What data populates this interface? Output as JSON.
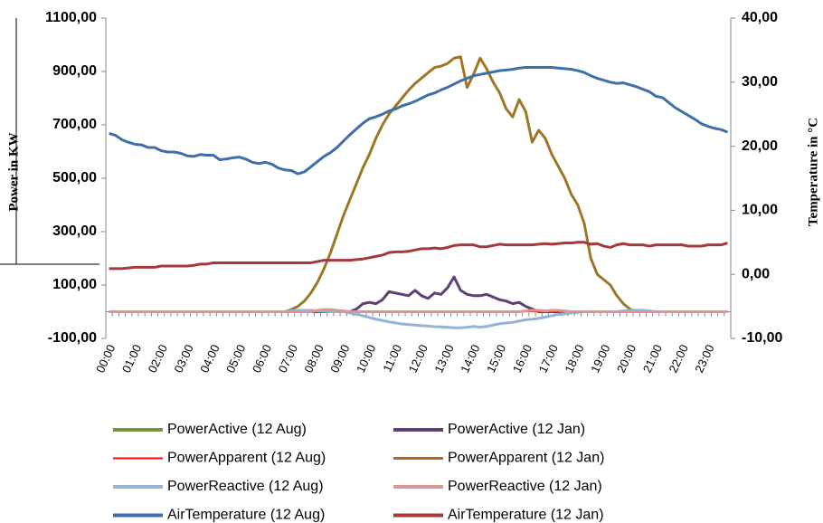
{
  "chart_data": {
    "type": "line",
    "y_label": "Power in KW",
    "y2_label": "Temperature in °C",
    "categories": [
      "00:00",
      null,
      null,
      null,
      "01:00",
      null,
      null,
      null,
      "02:00",
      null,
      null,
      null,
      "03:00",
      null,
      null,
      null,
      "04:00",
      null,
      null,
      null,
      "05:00",
      null,
      null,
      null,
      "06:00",
      null,
      null,
      null,
      "07:00",
      null,
      null,
      null,
      "08:00",
      null,
      null,
      null,
      "09:00",
      null,
      null,
      null,
      "10:00",
      null,
      null,
      null,
      "11:00",
      null,
      null,
      null,
      "12:00",
      null,
      null,
      null,
      "13:00",
      null,
      null,
      null,
      "14:00",
      null,
      null,
      null,
      "15:00",
      null,
      null,
      null,
      "16:00",
      null,
      null,
      null,
      "17:00",
      null,
      null,
      null,
      "18:00",
      null,
      null,
      null,
      "19:00",
      null,
      null,
      null,
      "20:00",
      null,
      null,
      null,
      "21:00",
      null,
      null,
      null,
      "22:00",
      null,
      null,
      null,
      "23:00",
      null,
      null,
      null
    ],
    "ylim": [
      -100,
      1100
    ],
    "yticks": [
      {
        "value": -100,
        "label": "-100,00"
      },
      {
        "value": 100,
        "label": "100,00"
      },
      {
        "value": 300,
        "label": "300,00"
      },
      {
        "value": 500,
        "label": "500,00"
      },
      {
        "value": 700,
        "label": "700,00"
      },
      {
        "value": 900,
        "label": "900,00"
      },
      {
        "value": 1100,
        "label": "1100,00"
      }
    ],
    "y2lim": [
      -10,
      40
    ],
    "y2ticks": [
      {
        "value": -10,
        "label": "-10,00"
      },
      {
        "value": 0,
        "label": "0,00"
      },
      {
        "value": 10,
        "label": "10,00"
      },
      {
        "value": 20,
        "label": "20,00"
      },
      {
        "value": 30,
        "label": "30,00"
      },
      {
        "value": 40,
        "label": "40,00"
      }
    ],
    "grid": false,
    "legend": "bottom",
    "series": [
      {
        "name": "PowerActive (12 Aug)",
        "color": "#77933c",
        "width": 3,
        "values": [
          0,
          0,
          0,
          0,
          0,
          0,
          0,
          0,
          0,
          0,
          0,
          0,
          0,
          0,
          0,
          0,
          0,
          0,
          0,
          0,
          0,
          0,
          0,
          0,
          0,
          0,
          0,
          0,
          8,
          20,
          40,
          70,
          110,
          160,
          220,
          290,
          360,
          420,
          480,
          540,
          590,
          650,
          700,
          740,
          770,
          800,
          830,
          855,
          875,
          895,
          915,
          920,
          930,
          950,
          955,
          840,
          890,
          950,
          910,
          860,
          820,
          760,
          730,
          795,
          750,
          635,
          680,
          650,
          590,
          545,
          500,
          440,
          400,
          330,
          200,
          140,
          120,
          100,
          60,
          30,
          10,
          0,
          0,
          0,
          0,
          0,
          0,
          0,
          0,
          0,
          0,
          0,
          0,
          0,
          0,
          0
        ]
      },
      {
        "name": "PowerActive (12 Jan)",
        "color": "#5f3f75",
        "width": 3,
        "values": [
          0,
          0,
          0,
          0,
          0,
          0,
          0,
          0,
          0,
          0,
          0,
          0,
          0,
          0,
          0,
          0,
          0,
          0,
          0,
          0,
          0,
          0,
          0,
          0,
          0,
          0,
          0,
          0,
          0,
          0,
          0,
          0,
          0,
          0,
          0,
          0,
          0,
          0,
          10,
          30,
          35,
          30,
          45,
          75,
          70,
          65,
          60,
          80,
          60,
          50,
          70,
          65,
          90,
          130,
          80,
          65,
          60,
          60,
          65,
          55,
          45,
          40,
          30,
          35,
          20,
          10,
          0,
          0,
          0,
          0,
          0,
          0,
          0,
          0,
          0,
          0,
          0,
          0,
          0,
          0,
          0,
          0,
          0,
          0,
          0,
          0,
          0,
          0,
          0,
          0,
          0,
          0,
          0,
          0,
          0,
          0
        ]
      },
      {
        "name": "PowerApparent (12 Aug)",
        "color": "#ff0000",
        "width": 1,
        "values": [
          0,
          0,
          0,
          0,
          0,
          0,
          0,
          0,
          0,
          0,
          0,
          0,
          0,
          0,
          0,
          0,
          0,
          0,
          0,
          0,
          0,
          0,
          0,
          0,
          0,
          0,
          0,
          0,
          0,
          0,
          0,
          0,
          0,
          0,
          0,
          0,
          0,
          0,
          0,
          0,
          0,
          0,
          0,
          0,
          0,
          0,
          0,
          0,
          0,
          0,
          0,
          0,
          0,
          0,
          0,
          0,
          0,
          0,
          0,
          0,
          0,
          0,
          0,
          0,
          0,
          0,
          0,
          0,
          0,
          0,
          0,
          0,
          0,
          0,
          0,
          0,
          0,
          0,
          0,
          0,
          0,
          0,
          0,
          0,
          0,
          0,
          0,
          0,
          0,
          0,
          0,
          0,
          0,
          0,
          0,
          0
        ]
      },
      {
        "name": "PowerApparent (12 Jan)",
        "color": "#b26b1e",
        "width": 2,
        "values": [
          0,
          0,
          0,
          0,
          0,
          0,
          0,
          0,
          0,
          0,
          0,
          0,
          0,
          0,
          0,
          0,
          0,
          0,
          0,
          0,
          0,
          0,
          0,
          0,
          0,
          0,
          0,
          0,
          8,
          20,
          40,
          70,
          110,
          160,
          220,
          290,
          360,
          420,
          480,
          540,
          590,
          650,
          700,
          740,
          770,
          800,
          830,
          855,
          875,
          895,
          915,
          920,
          930,
          950,
          955,
          840,
          890,
          950,
          910,
          860,
          820,
          760,
          730,
          795,
          750,
          635,
          680,
          650,
          590,
          545,
          500,
          440,
          400,
          330,
          200,
          140,
          120,
          100,
          60,
          30,
          10,
          0,
          0,
          0,
          0,
          0,
          0,
          0,
          0,
          0,
          0,
          0,
          0,
          0,
          0,
          0
        ]
      },
      {
        "name": "PowerReactive (12 Aug)",
        "color": "#95b3d7",
        "width": 3,
        "values": [
          0,
          0,
          0,
          0,
          0,
          0,
          0,
          0,
          0,
          0,
          0,
          0,
          0,
          0,
          0,
          0,
          0,
          0,
          0,
          0,
          0,
          0,
          0,
          0,
          0,
          0,
          0,
          0,
          3,
          5,
          5,
          5,
          3,
          2,
          0,
          0,
          0,
          -5,
          -10,
          -15,
          -22,
          -28,
          -33,
          -38,
          -42,
          -46,
          -48,
          -50,
          -52,
          -54,
          -56,
          -57,
          -58,
          -60,
          -60,
          -58,
          -55,
          -58,
          -55,
          -50,
          -45,
          -42,
          -40,
          -35,
          -30,
          -28,
          -25,
          -20,
          -15,
          -10,
          -8,
          -5,
          -3,
          0,
          0,
          0,
          0,
          0,
          0,
          3,
          5,
          5,
          5,
          3,
          0,
          0,
          0,
          0,
          0,
          0,
          0,
          0,
          0,
          0,
          0,
          0
        ]
      },
      {
        "name": "PowerReactive (12 Jan)",
        "color": "#d99694",
        "width": 3,
        "values": [
          0,
          0,
          0,
          0,
          0,
          0,
          0,
          0,
          0,
          0,
          0,
          0,
          0,
          0,
          0,
          0,
          0,
          0,
          0,
          0,
          0,
          0,
          0,
          0,
          0,
          0,
          0,
          0,
          0,
          0,
          0,
          0,
          5,
          8,
          8,
          5,
          3,
          0,
          0,
          0,
          0,
          0,
          0,
          0,
          0,
          0,
          0,
          0,
          0,
          0,
          0,
          0,
          0,
          0,
          0,
          0,
          0,
          0,
          0,
          0,
          0,
          0,
          0,
          0,
          3,
          5,
          5,
          3,
          5,
          5,
          3,
          0,
          0,
          0,
          0,
          0,
          0,
          0,
          0,
          0,
          0,
          0,
          0,
          0,
          0,
          0,
          0,
          0,
          0,
          0,
          0,
          0,
          0,
          0,
          0,
          0
        ]
      },
      {
        "name": "AirTemperature (12 Aug)",
        "color": "#3f6fa8",
        "width": 3,
        "axis": "y2",
        "values": [
          22.0,
          21.7,
          21.0,
          20.6,
          20.3,
          20.2,
          19.8,
          19.8,
          19.3,
          19.1,
          19.1,
          18.9,
          18.5,
          18.4,
          18.7,
          18.6,
          18.6,
          17.9,
          18.0,
          18.2,
          18.3,
          18.0,
          17.5,
          17.3,
          17.5,
          17.2,
          16.6,
          16.3,
          16.2,
          15.7,
          16.0,
          16.8,
          17.6,
          18.4,
          19.0,
          19.8,
          20.8,
          21.8,
          22.7,
          23.6,
          24.3,
          24.6,
          25.0,
          25.5,
          25.8,
          26.3,
          26.6,
          27.0,
          27.5,
          28.0,
          28.3,
          28.8,
          29.2,
          29.7,
          30.2,
          30.6,
          31.0,
          31.2,
          31.4,
          31.6,
          31.8,
          31.9,
          32.0,
          32.2,
          32.3,
          32.3,
          32.3,
          32.3,
          32.3,
          32.2,
          32.1,
          32.0,
          31.8,
          31.5,
          31.0,
          30.6,
          30.3,
          30.0,
          29.8,
          29.9,
          29.6,
          29.3,
          28.9,
          28.5,
          27.8,
          27.6,
          26.8,
          26.0,
          25.4,
          24.8,
          24.2,
          23.5,
          23.1,
          22.8,
          22.6,
          22.2
        ]
      },
      {
        "name": "AirTemperature (12 Jan)",
        "color": "#a5383a",
        "width": 3,
        "axis": "y2",
        "values": [
          0.9,
          0.9,
          0.9,
          1.0,
          1.1,
          1.1,
          1.1,
          1.1,
          1.3,
          1.3,
          1.3,
          1.3,
          1.3,
          1.4,
          1.6,
          1.6,
          1.8,
          1.8,
          1.8,
          1.8,
          1.8,
          1.8,
          1.8,
          1.8,
          1.8,
          1.8,
          1.8,
          1.8,
          1.8,
          1.8,
          1.8,
          1.8,
          2.0,
          2.2,
          2.2,
          2.2,
          2.2,
          2.2,
          2.3,
          2.4,
          2.6,
          2.8,
          3.0,
          3.4,
          3.5,
          3.5,
          3.6,
          3.8,
          4.0,
          4.0,
          4.1,
          4.0,
          4.2,
          4.5,
          4.6,
          4.6,
          4.6,
          4.3,
          4.3,
          4.5,
          4.7,
          4.6,
          4.6,
          4.6,
          4.6,
          4.6,
          4.7,
          4.8,
          4.7,
          4.8,
          4.9,
          4.9,
          5.0,
          5.0,
          4.7,
          4.8,
          4.4,
          4.2,
          4.6,
          4.8,
          4.6,
          4.6,
          4.6,
          4.4,
          4.6,
          4.6,
          4.6,
          4.6,
          4.6,
          4.4,
          4.4,
          4.4,
          4.6,
          4.6,
          4.6,
          4.9
        ]
      }
    ]
  }
}
